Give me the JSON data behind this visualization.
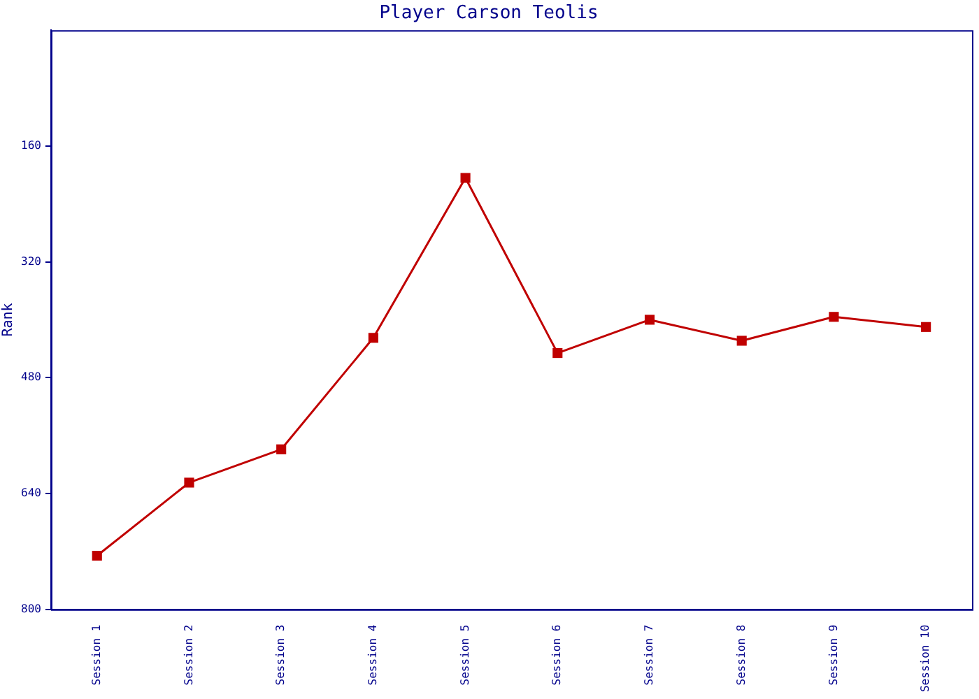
{
  "chart_data": {
    "type": "line",
    "title": "Player Carson Teolis",
    "ylabel": "Rank",
    "categories": [
      "Session 1",
      "Session 2",
      "Session 3",
      "Session 4",
      "Session 5",
      "Session 6",
      "Session 7",
      "Session 8",
      "Session 9",
      "Session 10"
    ],
    "series": [
      {
        "color": "#c00000",
        "values": [
          726,
          625,
          579,
          425,
          204,
          446,
          400,
          429,
          396,
          410
        ]
      }
    ],
    "ylim": [
      800,
      0
    ],
    "yticks": [
      160,
      320,
      480,
      640,
      800
    ],
    "grid": false,
    "legend": false,
    "marker": "square",
    "line_style": "solid"
  }
}
